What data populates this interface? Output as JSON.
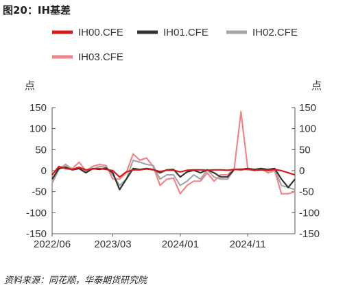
{
  "figure": {
    "title": "图20：IH基差",
    "source": "资料来源：同花顺，华泰期货研究院"
  },
  "chart_data": {
    "type": "line",
    "title": "IH基差",
    "ylabel_left": "点",
    "ylabel_right": "点",
    "ylim": [
      -150,
      150
    ],
    "yticks": [
      150,
      100,
      50,
      0,
      -50,
      -100,
      -150
    ],
    "xticks": [
      "2022/06",
      "2023/03",
      "2024/01",
      "2024/11"
    ],
    "xrange": [
      "2022/06",
      "2025/06"
    ],
    "legend": {
      "position": "top",
      "entries": [
        "IH00.CFE",
        "IH01.CFE",
        "IH02.CFE",
        "IH03.CFE"
      ]
    },
    "grid": false,
    "x": [
      "2022/06",
      "2022/07",
      "2022/08",
      "2022/09",
      "2022/10",
      "2022/11",
      "2022/12",
      "2023/01",
      "2023/02",
      "2023/03",
      "2023/04",
      "2023/05",
      "2023/06",
      "2023/07",
      "2023/08",
      "2023/09",
      "2023/10",
      "2023/11",
      "2023/12",
      "2024/01",
      "2024/02",
      "2024/03",
      "2024/04",
      "2024/05",
      "2024/06",
      "2024/07",
      "2024/08",
      "2024/09",
      "2024/10",
      "2024/11",
      "2024/12",
      "2025/01",
      "2025/02",
      "2025/03",
      "2025/04",
      "2025/05",
      "2025/06"
    ],
    "series": [
      {
        "name": "IH00.CFE",
        "color": "#d7191c",
        "width": 2.2,
        "values": [
          -10,
          10,
          5,
          3,
          8,
          2,
          4,
          5,
          3,
          0,
          -15,
          -3,
          2,
          2,
          4,
          2,
          -2,
          1,
          1,
          -3,
          1,
          2,
          2,
          1,
          2,
          2,
          1,
          3,
          2,
          4,
          1,
          2,
          1,
          3,
          0,
          -5,
          -10
        ]
      },
      {
        "name": "IH01.CFE",
        "color": "#333333",
        "width": 2.2,
        "values": [
          -20,
          5,
          8,
          2,
          5,
          -5,
          5,
          3,
          6,
          -5,
          -45,
          -20,
          5,
          3,
          5,
          3,
          -5,
          2,
          3,
          -15,
          -3,
          1,
          -5,
          2,
          -5,
          -15,
          -15,
          3,
          3,
          5,
          3,
          5,
          3,
          5,
          -20,
          -40,
          -20
        ]
      },
      {
        "name": "IH02.CFE",
        "color": "#a6a6a6",
        "width": 2.2,
        "values": [
          -30,
          3,
          15,
          3,
          8,
          -3,
          4,
          10,
          8,
          -10,
          -35,
          -20,
          25,
          20,
          15,
          12,
          -20,
          -10,
          -10,
          -35,
          -25,
          -10,
          -20,
          2,
          -15,
          -20,
          -20,
          3,
          4,
          2,
          1,
          4,
          0,
          3,
          -35,
          -40,
          -45
        ]
      },
      {
        "name": "IH03.CFE",
        "color": "#f0868a",
        "width": 2.2,
        "values": [
          -25,
          8,
          10,
          5,
          20,
          0,
          10,
          15,
          12,
          -20,
          -20,
          -5,
          40,
          25,
          30,
          10,
          -35,
          -20,
          -18,
          -55,
          -35,
          -25,
          -25,
          -5,
          -25,
          -10,
          -10,
          5,
          140,
          5,
          0,
          5,
          -5,
          0,
          -55,
          -55,
          -50
        ]
      }
    ]
  }
}
